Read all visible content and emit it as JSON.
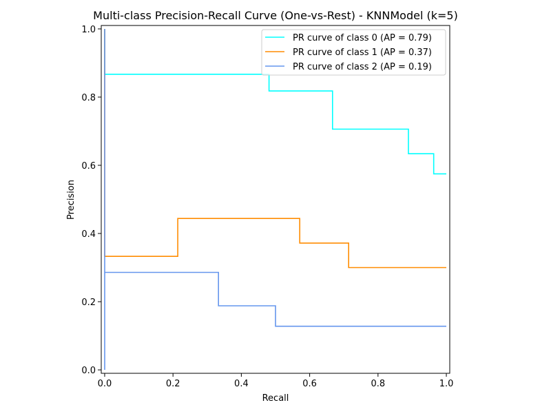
{
  "chart_data": {
    "type": "line",
    "title": "Multi-class Precision-Recall Curve (One-vs-Rest) - KNNModel (k=5)",
    "xlabel": "Recall",
    "ylabel": "Precision",
    "xlim": [
      -0.01,
      1.01
    ],
    "ylim": [
      -0.01,
      1.01
    ],
    "xticks": [
      0.0,
      0.2,
      0.4,
      0.6,
      0.8,
      1.0
    ],
    "xtick_labels": [
      "0.0",
      "0.2",
      "0.4",
      "0.6",
      "0.8",
      "1.0"
    ],
    "yticks": [
      0.0,
      0.2,
      0.4,
      0.6,
      0.8,
      1.0
    ],
    "ytick_labels": [
      "0.0",
      "0.2",
      "0.4",
      "0.6",
      "0.8",
      "1.0"
    ],
    "grid": false,
    "legend_position": "top-right",
    "series": [
      {
        "name": "PR curve of class 0 (AP = 0.79)",
        "color": "#00ffff",
        "recall": [
          0.0,
          0.0,
          0.481,
          0.481,
          0.667,
          0.667,
          0.889,
          0.889,
          0.963,
          0.963,
          1.0
        ],
        "precision": [
          1.0,
          0.867,
          0.867,
          0.818,
          0.818,
          0.706,
          0.706,
          0.634,
          0.634,
          0.575,
          0.575
        ]
      },
      {
        "name": "PR curve of class 1 (AP = 0.37)",
        "color": "#ff8c00",
        "recall": [
          0.0,
          0.0,
          0.214,
          0.214,
          0.571,
          0.571,
          0.714,
          0.714,
          1.0
        ],
        "precision": [
          1.0,
          0.333,
          0.333,
          0.444,
          0.444,
          0.372,
          0.372,
          0.3,
          0.3
        ]
      },
      {
        "name": "PR curve of class 2 (AP = 0.19)",
        "color": "#6495ed",
        "recall": [
          0.0,
          0.0,
          0.0,
          0.333,
          0.333,
          0.5,
          0.5,
          1.0
        ],
        "precision": [
          0.0,
          1.0,
          0.286,
          0.286,
          0.188,
          0.188,
          0.128,
          0.128
        ]
      }
    ]
  }
}
